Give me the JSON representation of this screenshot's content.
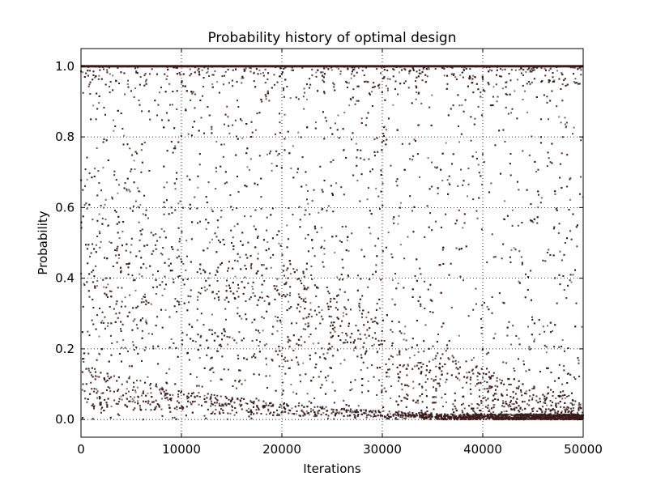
{
  "chart_data": {
    "type": "scatter",
    "title": "Probability history of optimal design",
    "xlabel": "Iterations",
    "ylabel": "Probability",
    "xlim": [
      0,
      50000
    ],
    "ylim": [
      -0.05,
      1.05
    ],
    "xticks": [
      "0",
      "10000",
      "20000",
      "30000",
      "40000",
      "50000"
    ],
    "yticks": [
      "0.0",
      "0.2",
      "0.4",
      "0.6",
      "0.8",
      "1.0"
    ],
    "grid": true,
    "legend": "none",
    "marker_color": "#3b1c1c",
    "sample_points": [
      [
        500,
        0.98
      ],
      [
        1500,
        0.85
      ],
      [
        2500,
        0.4
      ],
      [
        3000,
        0.12
      ],
      [
        4000,
        0.25
      ],
      [
        5000,
        0.93
      ],
      [
        6000,
        0.7
      ],
      [
        7500,
        0.1
      ],
      [
        9000,
        0.6
      ],
      [
        10000,
        0.08
      ],
      [
        12000,
        0.3
      ],
      [
        13000,
        0.07
      ],
      [
        15000,
        0.5
      ],
      [
        16000,
        0.06
      ],
      [
        18000,
        0.9
      ],
      [
        20000,
        0.18
      ],
      [
        22000,
        0.04
      ],
      [
        24000,
        0.65
      ],
      [
        26000,
        0.03
      ],
      [
        28000,
        0.35
      ],
      [
        30000,
        0.01
      ],
      [
        32000,
        0.78
      ],
      [
        34000,
        0.05
      ],
      [
        36000,
        0.15
      ],
      [
        38000,
        0.02
      ],
      [
        40000,
        0.2
      ],
      [
        42000,
        0.005
      ],
      [
        44000,
        0.1
      ],
      [
        46000,
        0.45
      ],
      [
        47000,
        0.03
      ],
      [
        48000,
        0.08
      ],
      [
        49000,
        0.002
      ],
      [
        49500,
        0.95
      ],
      [
        25000,
        1.0
      ],
      [
        45000,
        1.0
      ]
    ]
  }
}
